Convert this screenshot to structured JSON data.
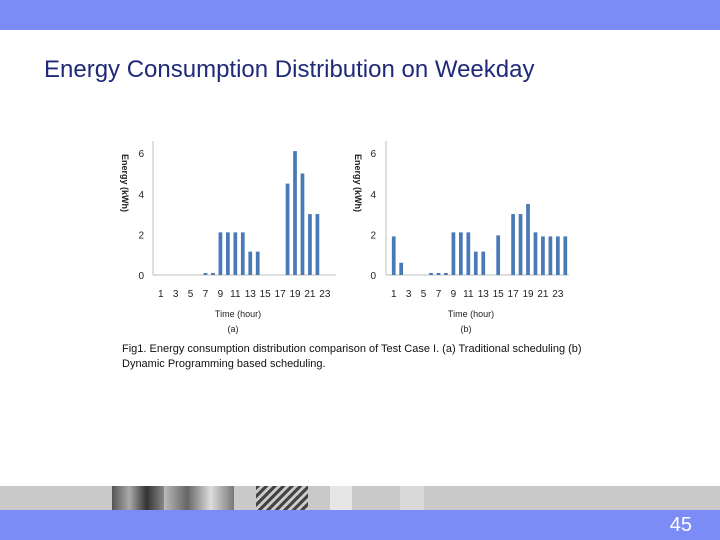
{
  "slide": {
    "title": "Energy Consumption Distribution on Weekday",
    "caption": "Fig1. Energy consumption distribution comparison of Test Case I. (a) Traditional scheduling (b) Dynamic Programming based scheduling.",
    "page_number": "45"
  },
  "colors": {
    "band": "#7b8cf6",
    "title": "#1f2a78",
    "bar": "#4a7ab5"
  },
  "chart_data": [
    {
      "type": "bar",
      "panel_label": "(a)",
      "xlabel": "Time (hour)",
      "ylabel": "Energy (kWh)",
      "ylim": [
        0,
        6.5
      ],
      "yticks": [
        "0",
        "2",
        "4",
        "6"
      ],
      "xticks": [
        "1",
        "3",
        "5",
        "7",
        "9",
        "11",
        "13",
        "15",
        "17",
        "19",
        "21",
        "23"
      ],
      "categories": [
        1,
        2,
        3,
        4,
        5,
        6,
        7,
        8,
        9,
        10,
        11,
        12,
        13,
        14,
        15,
        16,
        17,
        18,
        19,
        20,
        21,
        22,
        23,
        24
      ],
      "values": [
        0,
        0,
        0,
        0,
        0,
        0,
        0.1,
        0.1,
        2.1,
        2.1,
        2.1,
        2.1,
        1.15,
        1.15,
        0,
        0,
        0,
        4.5,
        6.1,
        5.0,
        3.0,
        3.0,
        0,
        0
      ]
    },
    {
      "type": "bar",
      "panel_label": "(b)",
      "xlabel": "Time (hour)",
      "ylabel": "Energy (kWh)",
      "ylim": [
        0,
        6.5
      ],
      "yticks": [
        "0",
        "2",
        "4",
        "6"
      ],
      "xticks": [
        "1",
        "3",
        "5",
        "7",
        "9",
        "11",
        "13",
        "15",
        "17",
        "19",
        "21",
        "23"
      ],
      "categories": [
        1,
        2,
        3,
        4,
        5,
        6,
        7,
        8,
        9,
        10,
        11,
        12,
        13,
        14,
        15,
        16,
        17,
        18,
        19,
        20,
        21,
        22,
        23,
        24
      ],
      "values": [
        1.9,
        0.6,
        0,
        0,
        0,
        0.1,
        0.1,
        0.1,
        2.1,
        2.1,
        2.1,
        1.15,
        1.15,
        0,
        1.95,
        0,
        3.0,
        3.0,
        3.5,
        2.1,
        1.9,
        1.9,
        1.9,
        1.9
      ]
    }
  ]
}
